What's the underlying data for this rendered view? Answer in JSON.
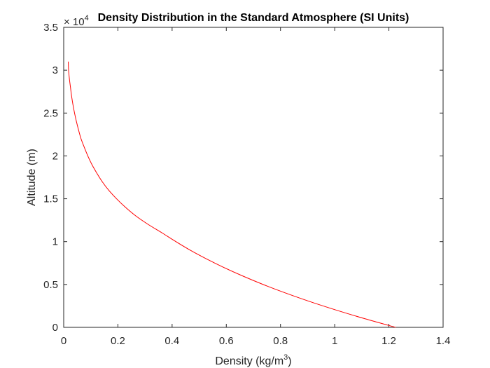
{
  "chart_data": {
    "type": "line",
    "title": "Density Distribution in the Standard Atmosphere (SI Units)",
    "xlabel": "Density (kg/m",
    "xlabel_superscript": "3",
    "xlabel_suffix": ")",
    "ylabel": "Altitude (m)",
    "y_exponent_prefix": "× 10",
    "y_exponent_power": "4",
    "xlim": [
      0,
      1.4
    ],
    "ylim": [
      0,
      3.5
    ],
    "y_multiplier": 10000,
    "x_ticks": [
      "0",
      "0.2",
      "0.4",
      "0.6",
      "0.8",
      "1",
      "1.2",
      "1.4"
    ],
    "y_ticks": [
      "0",
      "0.5",
      "1",
      "1.5",
      "2",
      "2.5",
      "3",
      "3.5"
    ],
    "grid": false,
    "line_color": "#ff0000",
    "series": [
      {
        "x": [
          1.225,
          1.112,
          1.007,
          0.909,
          0.819,
          0.736,
          0.66,
          0.59,
          0.526,
          0.467,
          0.414,
          0.364,
          0.312,
          0.266,
          0.228,
          0.195,
          0.166,
          0.142,
          0.122,
          0.104,
          0.089,
          0.076,
          0.064,
          0.055,
          0.047,
          0.04,
          0.034,
          0.029,
          0.025,
          0.021,
          0.018,
          0.017
        ],
        "y": [
          0,
          1000,
          2000,
          3000,
          4000,
          5000,
          6000,
          7000,
          8000,
          9000,
          10000,
          11000,
          12000,
          13000,
          14000,
          15000,
          16000,
          17000,
          18000,
          19000,
          20000,
          21000,
          22000,
          23000,
          24000,
          25000,
          26000,
          27000,
          28000,
          29000,
          30000,
          31000
        ]
      }
    ]
  }
}
